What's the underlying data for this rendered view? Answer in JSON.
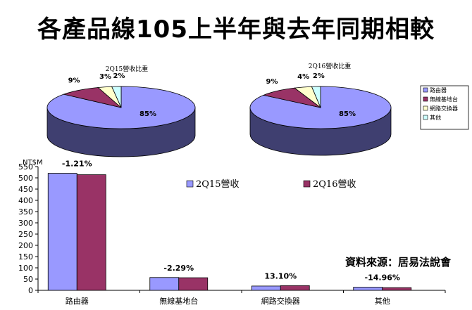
{
  "title": "各產品線105上半年與去年同期相較",
  "source_note": "資料來源：居易法說會",
  "colors": {
    "series_2q15": "#9999ff",
    "series_2q16": "#993366",
    "switch_color": "#ffffcc",
    "other_color": "#ccffff",
    "pie_side": "#3f3f70"
  },
  "chart_data": [
    {
      "type": "pie",
      "title": "2Q15營收比重",
      "slices": [
        {
          "name": "路由器",
          "value": 85,
          "label": "85%",
          "color": "#9999ff"
        },
        {
          "name": "無線基地台",
          "value": 9,
          "label": "9%",
          "color": "#993366"
        },
        {
          "name": "網路交換器",
          "value": 3,
          "label": "3%",
          "color": "#ffffcc"
        },
        {
          "name": "其他",
          "value": 2,
          "label": "2%",
          "color": "#ccffff"
        }
      ]
    },
    {
      "type": "pie",
      "title": "2Q16營收比重",
      "slices": [
        {
          "name": "路由器",
          "value": 85,
          "label": "85%",
          "color": "#9999ff"
        },
        {
          "name": "無線基地台",
          "value": 9,
          "label": "9%",
          "color": "#993366"
        },
        {
          "name": "網路交換器",
          "value": 4,
          "label": "4%",
          "color": "#ffffcc"
        },
        {
          "name": "其他",
          "value": 2,
          "label": "2%",
          "color": "#ccffff"
        }
      ],
      "legend": [
        "路由器",
        "無線基地台",
        "網路交換器",
        "其他"
      ],
      "legend_position": "right"
    },
    {
      "type": "bar",
      "ylabel": "NT$M",
      "ylim": [
        0,
        550
      ],
      "yticks": [
        0,
        50,
        100,
        150,
        200,
        250,
        300,
        350,
        400,
        450,
        500,
        550
      ],
      "categories": [
        "路由器",
        "無線基地台",
        "網路交換器",
        "其他"
      ],
      "series": [
        {
          "name": "2Q15營收",
          "values": [
            520,
            57,
            19,
            14
          ],
          "color": "#9999ff"
        },
        {
          "name": "2Q16營收",
          "values": [
            514,
            56,
            21,
            12
          ],
          "color": "#993366"
        }
      ],
      "annotations": [
        "-1.21%",
        "-2.29%",
        "13.10%",
        "-14.96%"
      ],
      "legend_position": "top-center"
    }
  ]
}
